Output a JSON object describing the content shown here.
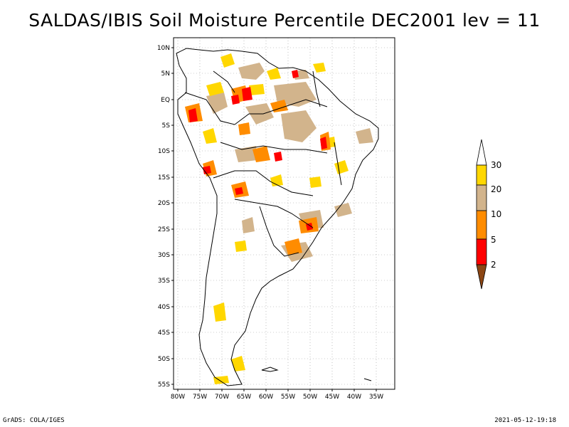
{
  "title": "SALDAS/IBIS Soil Moisture Percentile DEC2001 lev = 11",
  "footer": {
    "left": "GrADS: COLA/IGES",
    "right": "2021-05-12-19:18"
  },
  "map": {
    "lat_labels": [
      "10N",
      "5N",
      "EQ",
      "5S",
      "10S",
      "15S",
      "20S",
      "25S",
      "30S",
      "35S",
      "40S",
      "45S",
      "50S",
      "55S"
    ],
    "lon_labels": [
      "80W",
      "75W",
      "70W",
      "65W",
      "60W",
      "55W",
      "50W",
      "45W",
      "40W",
      "35W"
    ],
    "grid": true
  },
  "colorbar": {
    "labels": [
      "30",
      "20",
      "10",
      "5",
      "2"
    ],
    "colors": [
      "#ffd700",
      "#d2b48c",
      "#ff8c00",
      "#ff0000",
      "#8b4513"
    ],
    "top_arrow_color": "#ffffff"
  }
}
